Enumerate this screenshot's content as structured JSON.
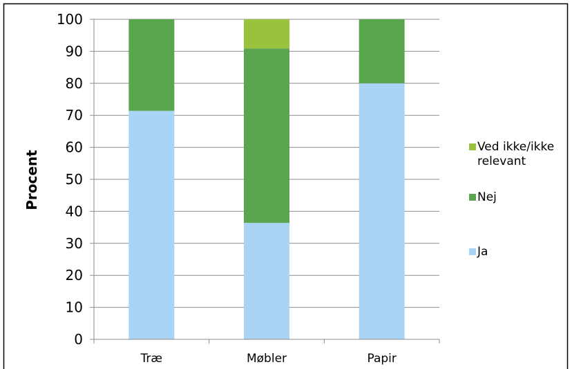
{
  "chart_data": {
    "type": "bar",
    "stacked": true,
    "categories": [
      "Træ",
      "Møbler",
      "Papir"
    ],
    "series": [
      {
        "name": "Ja",
        "color": "#a9d4f5",
        "values": [
          71.4,
          36.4,
          80.0
        ]
      },
      {
        "name": "Nej",
        "color": "#5aa64f",
        "values": [
          28.6,
          54.5,
          20.0
        ]
      },
      {
        "name": "Ved ikke/ikke relevant",
        "color": "#9bc23c",
        "values": [
          0,
          9.1,
          0
        ]
      }
    ],
    "title": "",
    "xlabel": "",
    "ylabel": "Procent",
    "ylim": [
      0,
      100
    ],
    "yticks": [
      "0",
      "10",
      "20",
      "30",
      "40",
      "50",
      "60",
      "70",
      "80",
      "90",
      "100"
    ],
    "grid": true,
    "legend_position": "right",
    "legend_order": [
      "Ved ikke/ikke relevant",
      "Nej",
      "Ja"
    ]
  }
}
